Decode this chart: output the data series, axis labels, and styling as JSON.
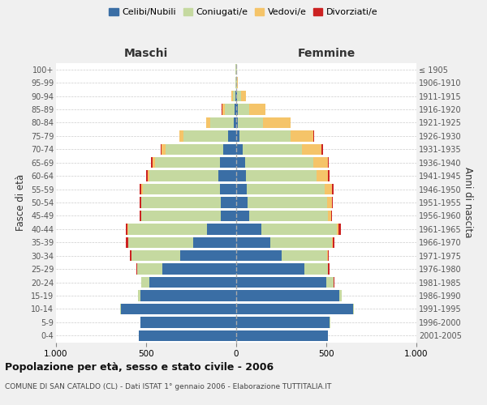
{
  "age_groups": [
    "0-4",
    "5-9",
    "10-14",
    "15-19",
    "20-24",
    "25-29",
    "30-34",
    "35-39",
    "40-44",
    "45-49",
    "50-54",
    "55-59",
    "60-64",
    "65-69",
    "70-74",
    "75-79",
    "80-84",
    "85-89",
    "90-94",
    "95-99",
    "100+"
  ],
  "birth_years": [
    "2001-2005",
    "1996-2000",
    "1991-1995",
    "1986-1990",
    "1981-1985",
    "1976-1980",
    "1971-1975",
    "1966-1970",
    "1961-1965",
    "1956-1960",
    "1951-1955",
    "1946-1950",
    "1941-1945",
    "1936-1940",
    "1931-1935",
    "1926-1930",
    "1921-1925",
    "1916-1920",
    "1911-1915",
    "1906-1910",
    "≤ 1905"
  ],
  "males": {
    "celibe": [
      540,
      530,
      640,
      530,
      480,
      410,
      310,
      240,
      160,
      85,
      85,
      90,
      100,
      90,
      70,
      45,
      15,
      8,
      5,
      2,
      2
    ],
    "coniugato": [
      1,
      2,
      5,
      15,
      45,
      140,
      270,
      360,
      440,
      440,
      440,
      430,
      380,
      360,
      320,
      250,
      130,
      55,
      15,
      3,
      1
    ],
    "vedovo": [
      0,
      0,
      0,
      0,
      0,
      0,
      1,
      1,
      2,
      3,
      4,
      5,
      10,
      15,
      25,
      20,
      20,
      15,
      5,
      1,
      0
    ],
    "divorziato": [
      0,
      0,
      0,
      1,
      2,
      5,
      8,
      10,
      10,
      8,
      8,
      10,
      10,
      8,
      5,
      2,
      1,
      1,
      0,
      0,
      0
    ]
  },
  "females": {
    "nubile": [
      510,
      520,
      650,
      570,
      500,
      380,
      250,
      190,
      140,
      70,
      65,
      60,
      55,
      50,
      35,
      20,
      10,
      8,
      5,
      2,
      2
    ],
    "coniugata": [
      1,
      2,
      4,
      15,
      40,
      130,
      255,
      340,
      420,
      440,
      440,
      430,
      390,
      380,
      330,
      280,
      140,
      65,
      20,
      3,
      1
    ],
    "vedova": [
      0,
      0,
      0,
      0,
      1,
      1,
      2,
      4,
      8,
      15,
      25,
      40,
      65,
      80,
      110,
      130,
      150,
      90,
      30,
      5,
      2
    ],
    "divorziata": [
      0,
      0,
      0,
      1,
      2,
      5,
      8,
      10,
      12,
      8,
      8,
      10,
      8,
      5,
      5,
      2,
      1,
      1,
      0,
      0,
      0
    ]
  },
  "colors": {
    "celibe": "#3a6ea5",
    "coniugato": "#c5d9a0",
    "vedovo": "#f5c469",
    "divorziato": "#cc2222"
  },
  "xlim": 1000,
  "title": "Popolazione per età, sesso e stato civile - 2006",
  "subtitle": "COMUNE DI SAN CATALDO (CL) - Dati ISTAT 1° gennaio 2006 - Elaborazione TUTTITALIA.IT",
  "ylabel_left": "Fasce di età",
  "ylabel_right": "Anni di nascita",
  "xlabel_left": "Maschi",
  "xlabel_right": "Femmine",
  "bg_color": "#f0f0f0",
  "plot_bg": "#ffffff"
}
